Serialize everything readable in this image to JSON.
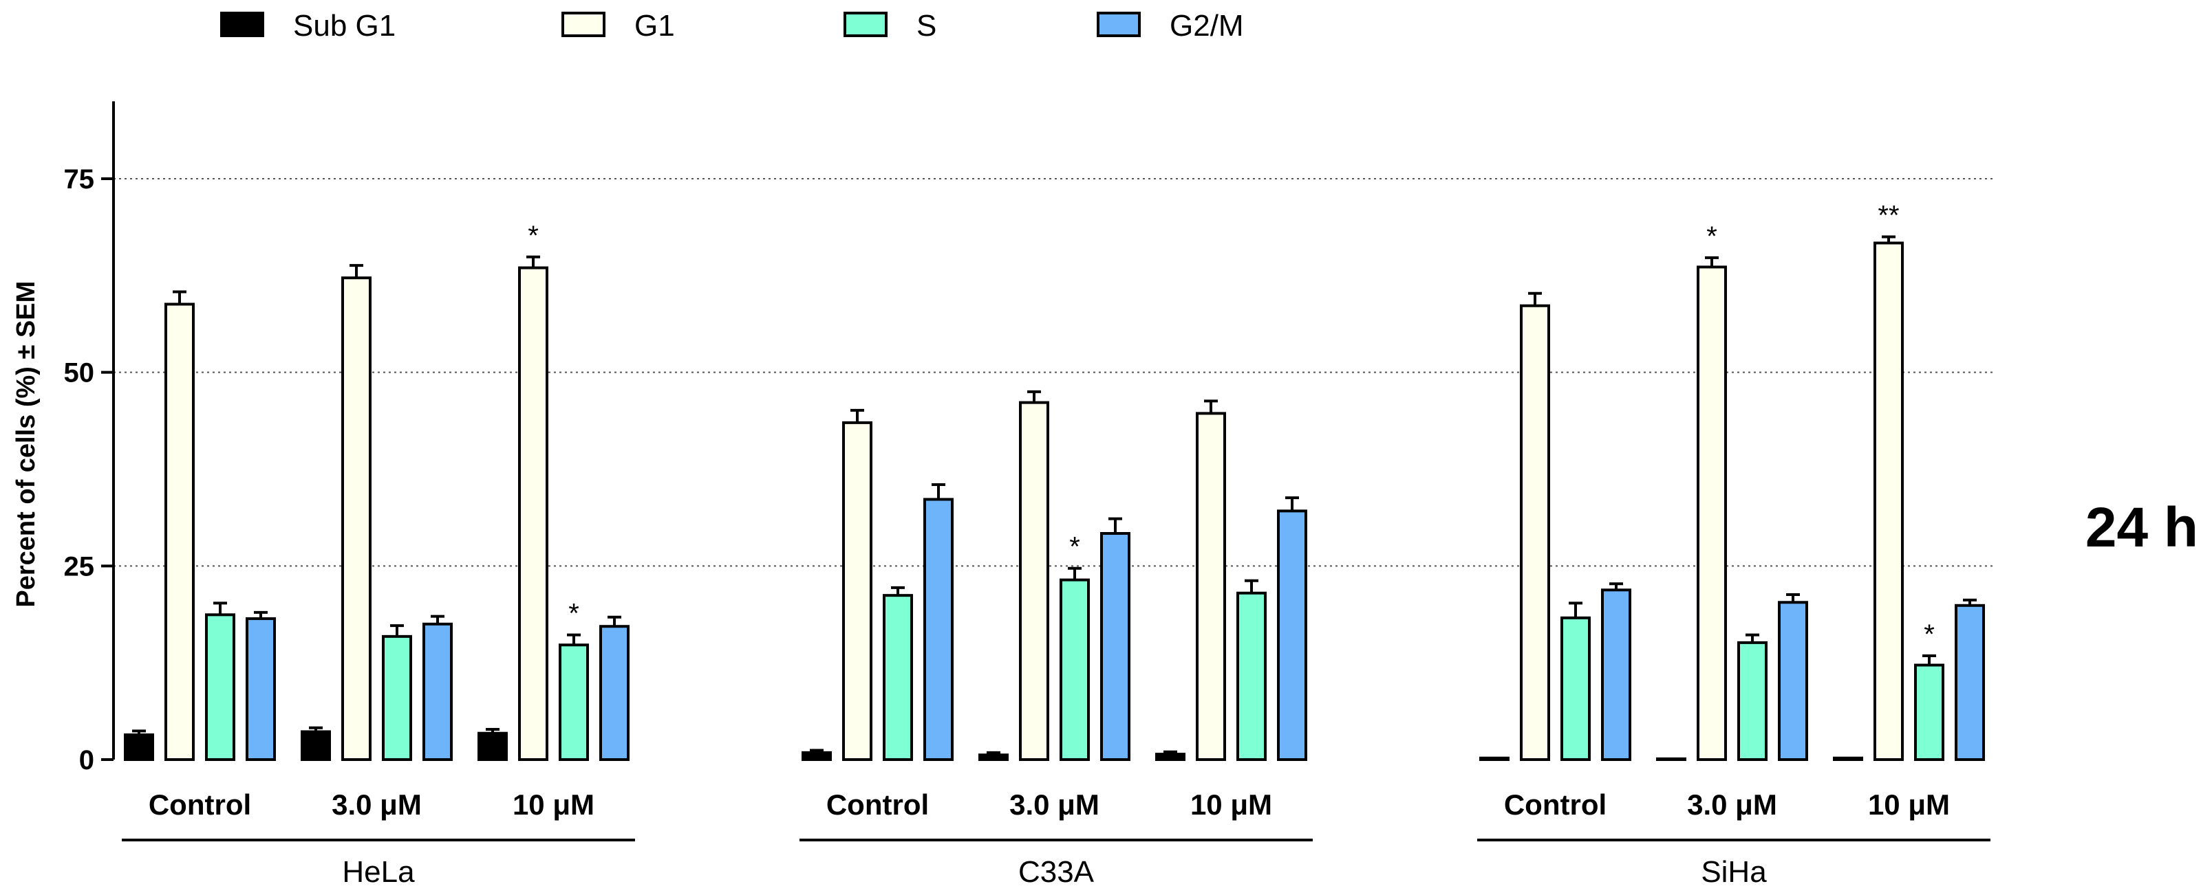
{
  "chart_data": {
    "type": "bar",
    "ylabel": "Percent of cells (%) ± SEM",
    "ylim": [
      0,
      85
    ],
    "yticks": [
      "0",
      "25",
      "50",
      "75"
    ],
    "ytick_values": [
      0,
      25,
      50,
      75
    ],
    "grid": "horizontal dotted at 25, 50, 75",
    "legend_position": "top",
    "side_label": "24 h",
    "dose_unit": "μM",
    "series": [
      {
        "name": "Sub G1",
        "color": "#000000"
      },
      {
        "name": "G1",
        "color": "#FFFFEE"
      },
      {
        "name": "S",
        "color": "#7FFFD4"
      },
      {
        "name": "G2/M",
        "color": "#6EB4FA"
      }
    ],
    "groups": [
      {
        "name": "HeLa",
        "conditions": [
          {
            "label": "Control",
            "values": [
              3.2,
              58.8,
              18.7,
              18.2
            ],
            "errors": [
              0.5,
              1.6,
              1.5,
              0.8
            ],
            "sig": [
              "",
              "",
              "",
              ""
            ]
          },
          {
            "label": "3.0 μM",
            "values": [
              3.6,
              62.2,
              15.9,
              17.5
            ],
            "errors": [
              0.5,
              1.6,
              1.4,
              1.0
            ],
            "sig": [
              "",
              "",
              "",
              ""
            ]
          },
          {
            "label": "10 μM",
            "values": [
              3.4,
              63.5,
              14.8,
              17.2
            ],
            "errors": [
              0.5,
              1.4,
              1.3,
              1.2
            ],
            "sig": [
              "",
              "*",
              "*",
              ""
            ]
          }
        ]
      },
      {
        "name": "C33A",
        "conditions": [
          {
            "label": "Control",
            "values": [
              0.9,
              43.5,
              21.2,
              33.6
            ],
            "errors": [
              0.3,
              1.6,
              1.0,
              1.9
            ],
            "sig": [
              "",
              "",
              "",
              ""
            ]
          },
          {
            "label": "3.0 μM",
            "values": [
              0.6,
              46.1,
              23.2,
              29.2
            ],
            "errors": [
              0.3,
              1.4,
              1.5,
              1.9
            ],
            "sig": [
              "",
              "",
              "*",
              ""
            ]
          },
          {
            "label": "10 μM",
            "values": [
              0.7,
              44.7,
              21.5,
              32.1
            ],
            "errors": [
              0.3,
              1.6,
              1.6,
              1.7
            ],
            "sig": [
              "",
              "",
              "",
              ""
            ]
          }
        ]
      },
      {
        "name": "SiHa",
        "conditions": [
          {
            "label": "Control",
            "values": [
              0.2,
              58.6,
              18.3,
              21.9
            ],
            "errors": [
              0.1,
              1.6,
              1.9,
              0.8
            ],
            "sig": [
              "",
              "",
              "",
              ""
            ]
          },
          {
            "label": "3.0 μM",
            "values": [
              0.1,
              63.6,
              15.1,
              20.3
            ],
            "errors": [
              0.1,
              1.2,
              1.0,
              1.0
            ],
            "sig": [
              "",
              "*",
              "",
              ""
            ]
          },
          {
            "label": "10 μM",
            "values": [
              0.2,
              66.7,
              12.2,
              19.9
            ],
            "errors": [
              0.1,
              0.8,
              1.2,
              0.7
            ],
            "sig": [
              "",
              "**",
              "*",
              ""
            ]
          }
        ]
      }
    ]
  }
}
